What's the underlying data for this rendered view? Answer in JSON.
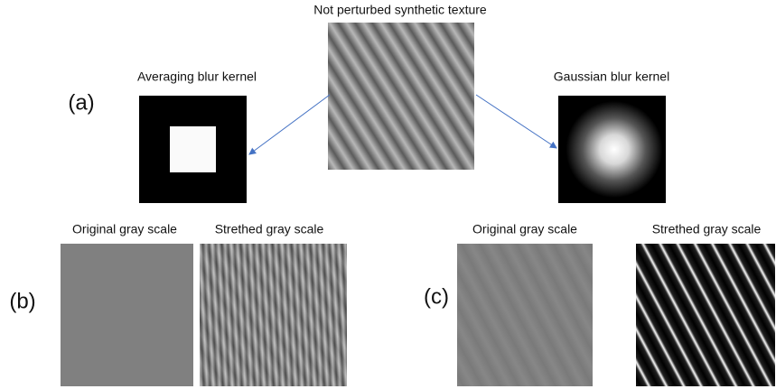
{
  "figure": {
    "title": "Not perturbed synthetic texture",
    "panel_a": {
      "label": "(a)",
      "left_caption": "Averaging blur kernel",
      "right_caption": "Gaussian blur kernel"
    },
    "panel_b": {
      "label": "(b)",
      "left_caption": "Original gray scale",
      "right_caption": "Strethed gray scale"
    },
    "panel_c": {
      "label": "(c)",
      "left_caption": "Original gray scale",
      "right_caption": "Strethed gray scale"
    }
  }
}
